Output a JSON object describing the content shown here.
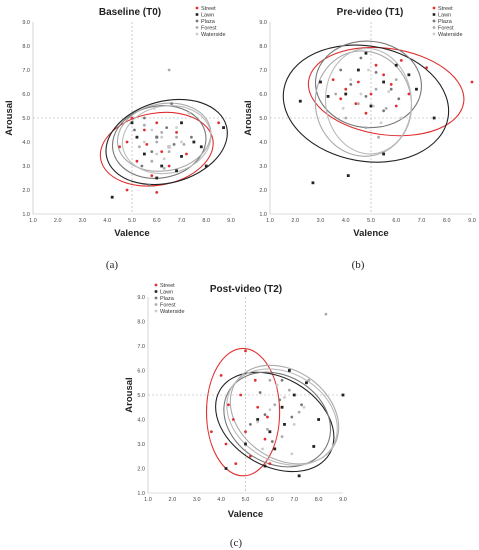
{
  "chart_data": [
    {
      "type": "scatter",
      "title": "Baseline (T0)",
      "caption": "(a)",
      "xlabel": "Valence",
      "ylabel": "Arousal",
      "xlim": [
        1.0,
        9.0
      ],
      "ylim": [
        1.0,
        9.0
      ],
      "xticks": [
        "1.0",
        "2.0",
        "3.0",
        "4.0",
        "5.0",
        "6.0",
        "7.0",
        "8.0",
        "9.0"
      ],
      "yticks": [
        "1.0",
        "2.0",
        "3.0",
        "4.0",
        "5.0",
        "6.0",
        "7.0",
        "8.0",
        "9.0"
      ],
      "reference_lines": {
        "x": 5.0,
        "y": 5.0
      },
      "legend_position": "top-right",
      "series": [
        {
          "name": "Street",
          "color": "#e03030",
          "marker": "circle",
          "points": [
            [
              4.8,
              4.0
            ],
            [
              5.2,
              3.2
            ],
            [
              5.5,
              4.5
            ],
            [
              6.0,
              4.8
            ],
            [
              6.2,
              3.6
            ],
            [
              5.8,
              2.6
            ],
            [
              4.5,
              3.8
            ],
            [
              6.5,
              3.0
            ],
            [
              5.0,
              5.0
            ],
            [
              5.6,
              3.9
            ],
            [
              4.8,
              2.0
            ],
            [
              6.8,
              4.4
            ],
            [
              7.2,
              3.5
            ],
            [
              8.5,
              4.8
            ],
            [
              6.0,
              1.9
            ]
          ],
          "ellipse": {
            "cx": 6.0,
            "cy": 3.7,
            "rx": 2.3,
            "ry": 1.5,
            "angle": -10
          }
        },
        {
          "name": "Lawn",
          "color": "#222222",
          "marker": "square",
          "points": [
            [
              5.0,
              4.8
            ],
            [
              5.5,
              3.5
            ],
            [
              6.0,
              4.2
            ],
            [
              6.5,
              3.8
            ],
            [
              7.0,
              4.8
            ],
            [
              7.5,
              4.0
            ],
            [
              6.8,
              2.8
            ],
            [
              5.2,
              4.2
            ],
            [
              6.2,
              3.0
            ],
            [
              7.8,
              3.8
            ],
            [
              8.0,
              3.0
            ],
            [
              8.7,
              4.6
            ],
            [
              4.2,
              1.7
            ],
            [
              6.0,
              2.5
            ],
            [
              7.0,
              3.4
            ]
          ],
          "ellipse": {
            "cx": 6.4,
            "cy": 4.0,
            "rx": 2.5,
            "ry": 1.7,
            "angle": -15
          }
        },
        {
          "name": "Plaza",
          "color": "#777777",
          "marker": "circle",
          "points": [
            [
              5.5,
              5.0
            ],
            [
              6.0,
              4.2
            ],
            [
              5.8,
              3.6
            ],
            [
              6.4,
              4.6
            ],
            [
              5.4,
              3.0
            ],
            [
              6.7,
              3.9
            ],
            [
              5.1,
              4.5
            ],
            [
              6.6,
              5.6
            ],
            [
              7.4,
              4.2
            ],
            [
              5.7,
              2.2
            ]
          ],
          "ellipse": {
            "cx": 6.1,
            "cy": 4.0,
            "rx": 1.9,
            "ry": 1.5,
            "angle": -10
          }
        },
        {
          "name": "Forest",
          "color": "#aaaaaa",
          "marker": "circle",
          "points": [
            [
              6.0,
              4.0
            ],
            [
              6.2,
              4.4
            ],
            [
              5.5,
              4.7
            ],
            [
              6.5,
              3.6
            ],
            [
              5.8,
              3.2
            ],
            [
              6.8,
              4.2
            ],
            [
              6.5,
              7.0
            ],
            [
              7.1,
              3.9
            ],
            [
              5.3,
              3.8
            ],
            [
              6.3,
              2.9
            ]
          ],
          "ellipse": {
            "cx": 6.3,
            "cy": 4.2,
            "rx": 1.9,
            "ry": 1.4,
            "angle": -10
          }
        },
        {
          "name": "Waterside",
          "color": "#cccccc",
          "marker": "circle",
          "points": [
            [
              6.2,
              4.2
            ],
            [
              5.8,
              4.5
            ],
            [
              6.5,
              3.8
            ],
            [
              6.0,
              3.5
            ],
            [
              7.0,
              4.0
            ],
            [
              5.5,
              4.0
            ],
            [
              6.8,
              4.6
            ],
            [
              6.3,
              3.3
            ],
            [
              7.3,
              5.2
            ],
            [
              5.9,
              5.4
            ]
          ],
          "ellipse": {
            "cx": 6.4,
            "cy": 4.1,
            "rx": 1.8,
            "ry": 1.4,
            "angle": -10
          }
        }
      ]
    },
    {
      "type": "scatter",
      "title": "Pre-video (T1)",
      "caption": "(b)",
      "xlabel": "Valence",
      "ylabel": "Arousal",
      "xlim": [
        1.0,
        9.0
      ],
      "ylim": [
        1.0,
        9.0
      ],
      "xticks": [
        "1.0",
        "2.0",
        "3.0",
        "4.0",
        "5.0",
        "6.0",
        "7.0",
        "8.0",
        "9.0"
      ],
      "yticks": [
        "1.0",
        "2.0",
        "3.0",
        "4.0",
        "5.0",
        "6.0",
        "7.0",
        "8.0",
        "9.0"
      ],
      "reference_lines": {
        "x": 5.0,
        "y": 5.0
      },
      "legend_position": "top-right",
      "series": [
        {
          "name": "Street",
          "color": "#e03030",
          "marker": "circle",
          "points": [
            [
              4.5,
              6.5
            ],
            [
              5.0,
              6.0
            ],
            [
              5.5,
              6.8
            ],
            [
              6.0,
              5.5
            ],
            [
              4.0,
              6.2
            ],
            [
              5.2,
              7.2
            ],
            [
              6.5,
              6.0
            ],
            [
              3.8,
              5.8
            ],
            [
              4.8,
              5.2
            ],
            [
              7.2,
              7.1
            ],
            [
              9.0,
              6.5
            ],
            [
              5.8,
              6.4
            ],
            [
              3.5,
              6.6
            ],
            [
              6.2,
              7.4
            ],
            [
              4.4,
              5.6
            ]
          ],
          "ellipse": {
            "cx": 5.6,
            "cy": 6.1,
            "rx": 3.1,
            "ry": 1.8,
            "angle": 8
          }
        },
        {
          "name": "Lawn",
          "color": "#222222",
          "marker": "square",
          "points": [
            [
              4.5,
              7.0
            ],
            [
              5.5,
              6.5
            ],
            [
              4.0,
              6.0
            ],
            [
              6.0,
              7.2
            ],
            [
              3.0,
              6.5
            ],
            [
              5.0,
              5.5
            ],
            [
              6.8,
              6.2
            ],
            [
              2.7,
              2.3
            ],
            [
              4.1,
              2.6
            ],
            [
              2.2,
              5.7
            ],
            [
              5.5,
              3.5
            ],
            [
              7.5,
              5.0
            ],
            [
              4.8,
              7.7
            ],
            [
              3.3,
              5.9
            ],
            [
              6.5,
              6.8
            ]
          ],
          "ellipse": {
            "cx": 4.8,
            "cy": 5.6,
            "rx": 3.3,
            "ry": 2.4,
            "angle": 10
          }
        },
        {
          "name": "Plaza",
          "color": "#777777",
          "marker": "circle",
          "points": [
            [
              4.2,
              6.4
            ],
            [
              5.2,
              6.9
            ],
            [
              4.8,
              5.9
            ],
            [
              5.8,
              6.2
            ],
            [
              3.8,
              7.0
            ],
            [
              5.5,
              5.3
            ],
            [
              4.6,
              7.5
            ],
            [
              6.1,
              5.8
            ]
          ],
          "ellipse": {
            "cx": 4.9,
            "cy": 6.4,
            "rx": 2.1,
            "ry": 1.8,
            "angle": 5
          }
        },
        {
          "name": "Forest",
          "color": "#aaaaaa",
          "marker": "circle",
          "points": [
            [
              4.5,
              5.6
            ],
            [
              5.2,
              6.2
            ],
            [
              4.0,
              5.0
            ],
            [
              5.6,
              5.4
            ],
            [
              4.8,
              4.6
            ],
            [
              3.6,
              6.0
            ],
            [
              6.0,
              6.6
            ],
            [
              5.3,
              4.2
            ]
          ],
          "ellipse": {
            "cx": 4.7,
            "cy": 5.6,
            "rx": 1.9,
            "ry": 2.2,
            "angle": -10
          }
        },
        {
          "name": "Waterside",
          "color": "#cccccc",
          "marker": "circle",
          "points": [
            [
              4.6,
              6.0
            ],
            [
              5.1,
              5.5
            ],
            [
              4.2,
              6.6
            ],
            [
              5.7,
              6.1
            ],
            [
              4.9,
              7.0
            ],
            [
              3.9,
              5.4
            ],
            [
              6.2,
              5.0
            ],
            [
              5.4,
              4.8
            ]
          ],
          "ellipse": {
            "cx": 4.9,
            "cy": 5.7,
            "rx": 1.7,
            "ry": 2.2,
            "angle": -5
          }
        }
      ]
    },
    {
      "type": "scatter",
      "title": "Post-video (T2)",
      "caption": "(c)",
      "xlabel": "Valence",
      "ylabel": "Arousal",
      "xlim": [
        1.0,
        9.0
      ],
      "ylim": [
        1.0,
        9.0
      ],
      "xticks": [
        "1.0",
        "2.0",
        "3.0",
        "4.0",
        "5.0",
        "6.0",
        "7.0",
        "8.0",
        "9.0"
      ],
      "yticks": [
        "1.0",
        "2.0",
        "3.0",
        "4.0",
        "5.0",
        "6.0",
        "7.0",
        "8.0",
        "9.0"
      ],
      "reference_lines": {
        "x": 5.0,
        "y": 5.0
      },
      "legend_position": "top-left",
      "series": [
        {
          "name": "Street",
          "color": "#e03030",
          "marker": "circle",
          "points": [
            [
              4.5,
              4.0
            ],
            [
              5.0,
              3.5
            ],
            [
              4.8,
              5.0
            ],
            [
              5.5,
              4.5
            ],
            [
              4.2,
              3.0
            ],
            [
              5.2,
              2.5
            ],
            [
              4.0,
              5.8
            ],
            [
              5.0,
              6.8
            ],
            [
              3.6,
              3.5
            ],
            [
              5.8,
              3.2
            ],
            [
              4.6,
              2.2
            ],
            [
              6.0,
              2.2
            ],
            [
              5.4,
              5.6
            ],
            [
              4.3,
              4.6
            ],
            [
              5.9,
              4.1
            ]
          ],
          "ellipse": {
            "cx": 4.9,
            "cy": 4.3,
            "rx": 1.5,
            "ry": 2.6,
            "angle": 0
          }
        },
        {
          "name": "Lawn",
          "color": "#222222",
          "marker": "square",
          "points": [
            [
              5.5,
              4.0
            ],
            [
              6.0,
              3.5
            ],
            [
              6.5,
              4.5
            ],
            [
              7.0,
              5.0
            ],
            [
              5.0,
              3.0
            ],
            [
              6.2,
              2.8
            ],
            [
              7.5,
              5.5
            ],
            [
              4.2,
              2.0
            ],
            [
              7.2,
              1.7
            ],
            [
              6.8,
              6.0
            ],
            [
              8.0,
              4.0
            ],
            [
              9.0,
              5.0
            ],
            [
              5.8,
              2.1
            ],
            [
              6.6,
              3.8
            ],
            [
              7.8,
              2.9
            ]
          ],
          "ellipse": {
            "cx": 6.2,
            "cy": 3.9,
            "rx": 2.6,
            "ry": 1.8,
            "angle": 30
          }
        },
        {
          "name": "Plaza",
          "color": "#777777",
          "marker": "circle",
          "points": [
            [
              5.8,
              4.2
            ],
            [
              6.4,
              4.8
            ],
            [
              5.2,
              3.8
            ],
            [
              6.9,
              4.1
            ],
            [
              6.1,
              3.1
            ],
            [
              5.6,
              5.1
            ],
            [
              7.3,
              4.6
            ],
            [
              6.5,
              5.6
            ]
          ],
          "ellipse": {
            "cx": 6.3,
            "cy": 4.0,
            "rx": 2.3,
            "ry": 1.8,
            "angle": 30
          }
        },
        {
          "name": "Forest",
          "color": "#aaaaaa",
          "marker": "circle",
          "points": [
            [
              6.2,
              4.6
            ],
            [
              6.8,
              5.2
            ],
            [
              5.9,
              3.6
            ],
            [
              7.2,
              4.3
            ],
            [
              6.5,
              3.3
            ],
            [
              7.6,
              5.6
            ],
            [
              8.3,
              8.3
            ],
            [
              6.0,
              5.6
            ]
          ],
          "ellipse": {
            "cx": 6.6,
            "cy": 4.2,
            "rx": 2.4,
            "ry": 1.8,
            "angle": 35
          }
        },
        {
          "name": "Waterside",
          "color": "#cccccc",
          "marker": "circle",
          "points": [
            [
              6.0,
              4.4
            ],
            [
              6.6,
              4.9
            ],
            [
              5.5,
              3.9
            ],
            [
              7.0,
              3.8
            ],
            [
              6.3,
              5.4
            ],
            [
              7.4,
              4.5
            ],
            [
              5.7,
              2.8
            ],
            [
              6.9,
              2.6
            ]
          ],
          "ellipse": {
            "cx": 6.5,
            "cy": 4.1,
            "rx": 2.4,
            "ry": 1.8,
            "angle": 30
          }
        }
      ]
    }
  ]
}
